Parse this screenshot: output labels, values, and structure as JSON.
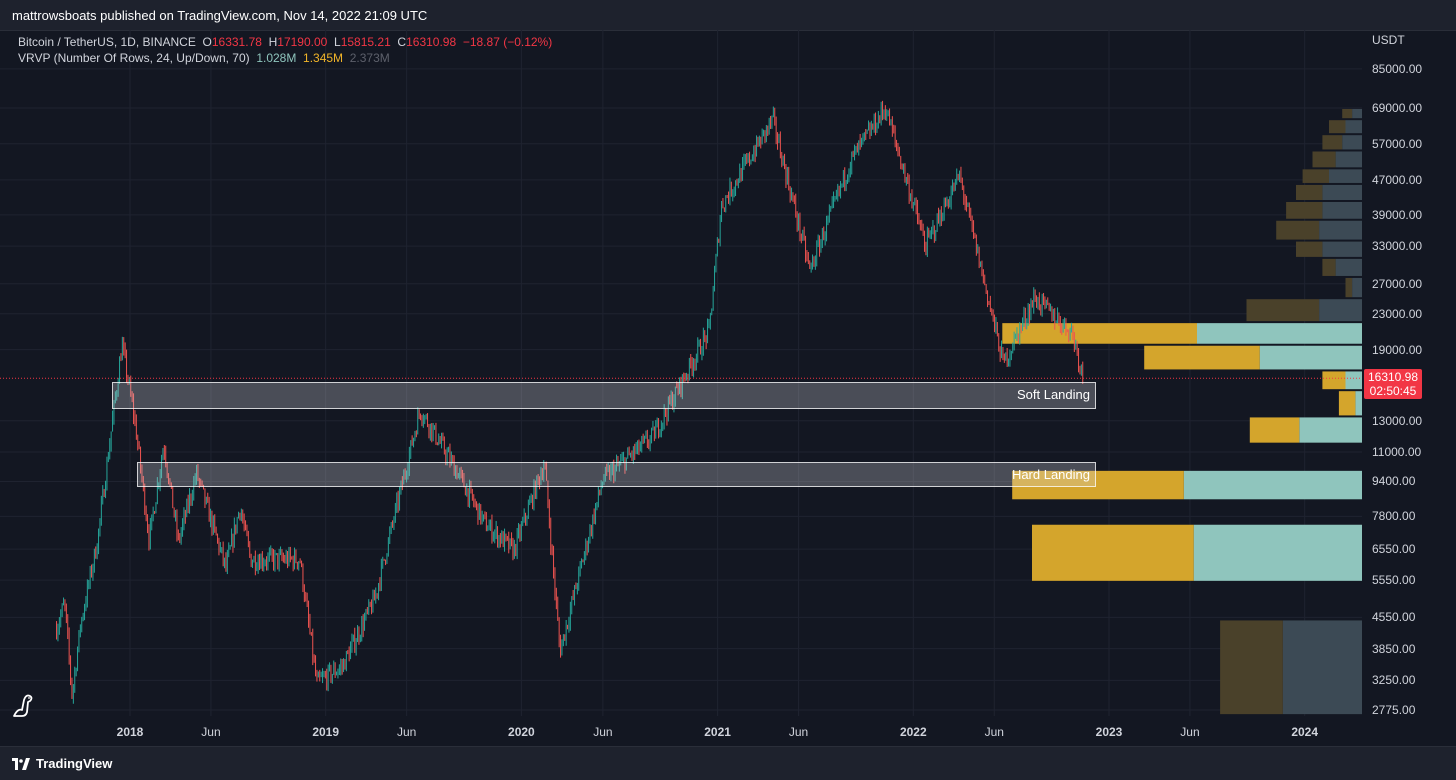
{
  "header": {
    "published_text": "mattrowsboats published on TradingView.com, Nov 14, 2022 21:09 UTC"
  },
  "legend": {
    "symbol": "Bitcoin / TetherUS, 1D, BINANCE",
    "open_label": "O",
    "open": "16331.78",
    "high_label": "H",
    "high": "17190.00",
    "low_label": "L",
    "low": "15815.21",
    "close_label": "C",
    "close": "16310.98",
    "change": "−18.87 (−0.12%)",
    "indicator": "VRVP (Number Of Rows, 24, Up/Down, 70)",
    "vol_up": "1.028M",
    "vol_down": "1.345M",
    "vol_total": "2.373M"
  },
  "axis": {
    "currency": "USDT",
    "y_ticks": [
      "85000.00",
      "69000.00",
      "57000.00",
      "47000.00",
      "39000.00",
      "33000.00",
      "27000.00",
      "23000.00",
      "19000.00",
      "13000.00",
      "11000.00",
      "9400.00",
      "7800.00",
      "6550.00",
      "5550.00",
      "4550.00",
      "3850.00",
      "3250.00",
      "2775.00"
    ],
    "x_ticks": [
      {
        "label": "2018",
        "year": true
      },
      {
        "label": "Jun",
        "year": false
      },
      {
        "label": "2019",
        "year": true
      },
      {
        "label": "Jun",
        "year": false
      },
      {
        "label": "2020",
        "year": true
      },
      {
        "label": "Jun",
        "year": false
      },
      {
        "label": "2021",
        "year": true
      },
      {
        "label": "Jun",
        "year": false
      },
      {
        "label": "2022",
        "year": true
      },
      {
        "label": "Jun",
        "year": false
      },
      {
        "label": "2023",
        "year": true
      },
      {
        "label": "Jun",
        "year": false
      },
      {
        "label": "2024",
        "year": true
      }
    ]
  },
  "zones": {
    "soft": "Soft Landing",
    "hard": "Hard Landing"
  },
  "price_tag": {
    "price": "16310.98",
    "countdown": "02:50:45"
  },
  "footer": {
    "brand": "TradingView"
  },
  "colors": {
    "background": "#131722",
    "up": "#26a69a",
    "down": "#ef5350",
    "vp_up": "#8fc5bd",
    "vp_down": "#d4a52c",
    "price_line": "#f23645"
  },
  "chart_data": {
    "type": "candlestick",
    "symbol": "BTCUSDT",
    "interval": "1D",
    "scale": "log",
    "price_path": [
      {
        "date": "2017-08-17",
        "price": 4300
      },
      {
        "date": "2017-09-01",
        "price": 4900
      },
      {
        "date": "2017-09-15",
        "price": 3000
      },
      {
        "date": "2017-10-01",
        "price": 4400
      },
      {
        "date": "2017-11-01",
        "price": 6800
      },
      {
        "date": "2017-12-17",
        "price": 19500
      },
      {
        "date": "2018-01-10",
        "price": 13000
      },
      {
        "date": "2018-02-06",
        "price": 6900
      },
      {
        "date": "2018-03-05",
        "price": 11500
      },
      {
        "date": "2018-04-01",
        "price": 6800
      },
      {
        "date": "2018-05-05",
        "price": 9800
      },
      {
        "date": "2018-06-29",
        "price": 5900
      },
      {
        "date": "2018-07-25",
        "price": 8200
      },
      {
        "date": "2018-08-14",
        "price": 6200
      },
      {
        "date": "2018-11-14",
        "price": 6200
      },
      {
        "date": "2018-12-15",
        "price": 3200
      },
      {
        "date": "2019-02-01",
        "price": 3500
      },
      {
        "date": "2019-04-02",
        "price": 5000
      },
      {
        "date": "2019-06-26",
        "price": 13800
      },
      {
        "date": "2019-09-01",
        "price": 10000
      },
      {
        "date": "2019-10-25",
        "price": 7500
      },
      {
        "date": "2019-12-18",
        "price": 6500
      },
      {
        "date": "2020-02-13",
        "price": 10400
      },
      {
        "date": "2020-03-13",
        "price": 3800
      },
      {
        "date": "2020-06-01",
        "price": 9500
      },
      {
        "date": "2020-09-01",
        "price": 11900
      },
      {
        "date": "2020-12-16",
        "price": 21000
      },
      {
        "date": "2021-01-08",
        "price": 41000
      },
      {
        "date": "2021-04-14",
        "price": 64800
      },
      {
        "date": "2021-06-22",
        "price": 29000
      },
      {
        "date": "2021-09-06",
        "price": 52000
      },
      {
        "date": "2021-11-10",
        "price": 69000
      },
      {
        "date": "2022-01-24",
        "price": 33000
      },
      {
        "date": "2022-03-28",
        "price": 48000
      },
      {
        "date": "2022-06-18",
        "price": 17600
      },
      {
        "date": "2022-08-15",
        "price": 25000
      },
      {
        "date": "2022-10-25",
        "price": 20800
      },
      {
        "date": "2022-11-14",
        "price": 16310.98
      }
    ],
    "zones": [
      {
        "name": "Soft Landing",
        "price_low": 13800,
        "price_high": 16000
      },
      {
        "name": "Hard Landing",
        "price_low": 9100,
        "price_high": 10400
      }
    ],
    "volume_profile_rows": [
      {
        "price_low": 65000,
        "price_high": 69000,
        "up": 0.03,
        "down": 0.03
      },
      {
        "price_low": 60000,
        "price_high": 65000,
        "up": 0.05,
        "down": 0.05
      },
      {
        "price_low": 55000,
        "price_high": 60000,
        "up": 0.06,
        "down": 0.06
      },
      {
        "price_low": 50000,
        "price_high": 55000,
        "up": 0.08,
        "down": 0.07
      },
      {
        "price_low": 46000,
        "price_high": 50000,
        "up": 0.1,
        "down": 0.08
      },
      {
        "price_low": 42000,
        "price_high": 46000,
        "up": 0.12,
        "down": 0.08
      },
      {
        "price_low": 38000,
        "price_high": 42000,
        "up": 0.12,
        "down": 0.11
      },
      {
        "price_low": 34000,
        "price_high": 38000,
        "up": 0.13,
        "down": 0.13
      },
      {
        "price_low": 31000,
        "price_high": 34000,
        "up": 0.12,
        "down": 0.08
      },
      {
        "price_low": 28000,
        "price_high": 31000,
        "up": 0.08,
        "down": 0.04
      },
      {
        "price_low": 25000,
        "price_high": 28000,
        "up": 0.03,
        "down": 0.02
      },
      {
        "price_low": 22000,
        "price_high": 25000,
        "up": 0.13,
        "down": 0.22
      },
      {
        "price_low": 19500,
        "price_high": 22000,
        "up": 0.5,
        "down": 0.59
      },
      {
        "price_low": 17000,
        "price_high": 19500,
        "up": 0.31,
        "down": 0.35
      },
      {
        "price_low": 15300,
        "price_high": 17000,
        "up": 0.05,
        "down": 0.07
      },
      {
        "price_low": 13300,
        "price_high": 15300,
        "up": 0.02,
        "down": 0.05
      },
      {
        "price_low": 11500,
        "price_high": 13300,
        "up": 0.19,
        "down": 0.15
      },
      {
        "price_low": 10000,
        "price_high": 11500,
        "up": 0.0,
        "down": 0.0
      },
      {
        "price_low": 8500,
        "price_high": 10000,
        "up": 0.54,
        "down": 0.52
      },
      {
        "price_low": 7500,
        "price_high": 8500,
        "up": 0.0,
        "down": 0.0
      },
      {
        "price_low": 5500,
        "price_high": 7500,
        "up": 0.51,
        "down": 0.49
      },
      {
        "price_low": 4500,
        "price_high": 5500,
        "up": 0.0,
        "down": 0.0
      },
      {
        "price_low": 2700,
        "price_high": 4500,
        "up": 0.24,
        "down": 0.19
      }
    ]
  }
}
